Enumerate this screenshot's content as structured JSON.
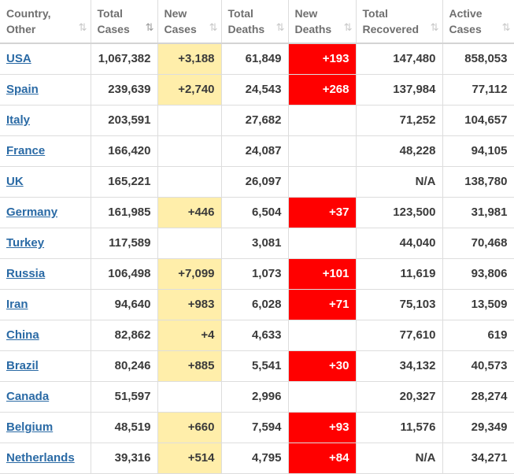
{
  "headers": [
    {
      "label_line1": "Country,",
      "label_line2": "Other",
      "sort": "⇅",
      "active": false
    },
    {
      "label_line1": "Total",
      "label_line2": "Cases",
      "sort": "⇅",
      "active": true
    },
    {
      "label_line1": "New",
      "label_line2": "Cases",
      "sort": "⇅",
      "active": false
    },
    {
      "label_line1": "Total",
      "label_line2": "Deaths",
      "sort": "⇅",
      "active": false
    },
    {
      "label_line1": "New",
      "label_line2": "Deaths",
      "sort": "⇅",
      "active": false
    },
    {
      "label_line1": "Total",
      "label_line2": "Recovered",
      "sort": "⇅",
      "active": false
    },
    {
      "label_line1": "Active",
      "label_line2": "Cases",
      "sort": "⇅",
      "active": false
    }
  ],
  "rows": [
    {
      "country": "USA",
      "total_cases": "1,067,382",
      "new_cases": "+3,188",
      "total_deaths": "61,849",
      "new_deaths": "+193",
      "recovered": "147,480",
      "active": "858,053"
    },
    {
      "country": "Spain",
      "total_cases": "239,639",
      "new_cases": "+2,740",
      "total_deaths": "24,543",
      "new_deaths": "+268",
      "recovered": "137,984",
      "active": "77,112"
    },
    {
      "country": "Italy",
      "total_cases": "203,591",
      "new_cases": "",
      "total_deaths": "27,682",
      "new_deaths": "",
      "recovered": "71,252",
      "active": "104,657"
    },
    {
      "country": "France",
      "total_cases": "166,420",
      "new_cases": "",
      "total_deaths": "24,087",
      "new_deaths": "",
      "recovered": "48,228",
      "active": "94,105"
    },
    {
      "country": "UK",
      "total_cases": "165,221",
      "new_cases": "",
      "total_deaths": "26,097",
      "new_deaths": "",
      "recovered": "N/A",
      "active": "138,780"
    },
    {
      "country": "Germany",
      "total_cases": "161,985",
      "new_cases": "+446",
      "total_deaths": "6,504",
      "new_deaths": "+37",
      "recovered": "123,500",
      "active": "31,981"
    },
    {
      "country": "Turkey",
      "total_cases": "117,589",
      "new_cases": "",
      "total_deaths": "3,081",
      "new_deaths": "",
      "recovered": "44,040",
      "active": "70,468"
    },
    {
      "country": "Russia",
      "total_cases": "106,498",
      "new_cases": "+7,099",
      "total_deaths": "1,073",
      "new_deaths": "+101",
      "recovered": "11,619",
      "active": "93,806"
    },
    {
      "country": "Iran",
      "total_cases": "94,640",
      "new_cases": "+983",
      "total_deaths": "6,028",
      "new_deaths": "+71",
      "recovered": "75,103",
      "active": "13,509"
    },
    {
      "country": "China",
      "total_cases": "82,862",
      "new_cases": "+4",
      "total_deaths": "4,633",
      "new_deaths": "",
      "recovered": "77,610",
      "active": "619"
    },
    {
      "country": "Brazil",
      "total_cases": "80,246",
      "new_cases": "+885",
      "total_deaths": "5,541",
      "new_deaths": "+30",
      "recovered": "34,132",
      "active": "40,573"
    },
    {
      "country": "Canada",
      "total_cases": "51,597",
      "new_cases": "",
      "total_deaths": "2,996",
      "new_deaths": "",
      "recovered": "20,327",
      "active": "28,274"
    },
    {
      "country": "Belgium",
      "total_cases": "48,519",
      "new_cases": "+660",
      "total_deaths": "7,594",
      "new_deaths": "+93",
      "recovered": "11,576",
      "active": "29,349"
    },
    {
      "country": "Netherlands",
      "total_cases": "39,316",
      "new_cases": "+514",
      "total_deaths": "4,795",
      "new_deaths": "+84",
      "recovered": "N/A",
      "active": "34,271"
    }
  ],
  "colors": {
    "new_cases_bg": "#ffeeaa",
    "new_deaths_bg": "#ff0000",
    "link": "#2a6aa5",
    "header_text": "#6f6f6f"
  }
}
